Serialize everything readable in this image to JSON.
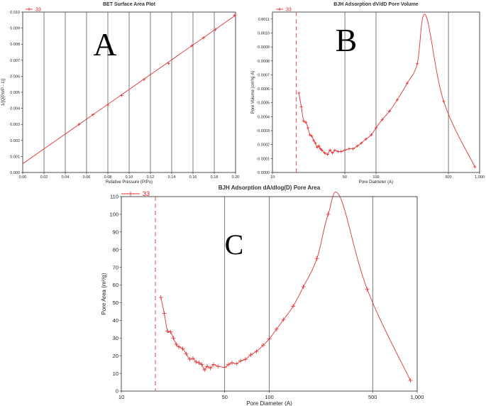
{
  "chart_data": [
    {
      "id": "A",
      "panel_letter": "A",
      "type": "line",
      "title": "BET Surface Area Plot",
      "xlabel": "Relative Pressure (P/Po)",
      "ylabel": "1/[Q(Po/P - 1)]",
      "legend": "33",
      "xscale": "linear",
      "xlim": [
        0,
        0.2
      ],
      "ylim": [
        0,
        0.01
      ],
      "xticks": [
        0,
        0.02,
        0.04,
        0.06,
        0.08,
        0.1,
        0.12,
        0.14,
        0.16,
        0.18,
        0.2
      ],
      "xtick_labels": [
        "0.00",
        "0.02",
        "0.04",
        "0.06",
        "0.08",
        "0.10",
        "0.12",
        "0.14",
        "0.16",
        "0.18",
        "0.20"
      ],
      "yticks": [
        0,
        0.001,
        0.002,
        0.003,
        0.004,
        0.005,
        0.006,
        0.007,
        0.008,
        0.009,
        0.01
      ],
      "ytick_labels": [
        "0.000",
        "0.001",
        "0.002",
        "0.003",
        "0.004",
        "0.005",
        "0.006",
        "0.007",
        "0.008",
        "0.009",
        "0.010"
      ],
      "grid_x": [
        0.02,
        0.04,
        0.06,
        0.08,
        0.1,
        0.12,
        0.14,
        0.16,
        0.18
      ],
      "fit_line": {
        "x": [
          0,
          0.2
        ],
        "y": [
          0.00055,
          0.0098
        ]
      },
      "points": {
        "x": [
          0.053,
          0.066,
          0.08,
          0.093,
          0.114,
          0.137,
          0.159,
          0.17,
          0.181,
          0.199
        ],
        "y": [
          0.003,
          0.0036,
          0.0042,
          0.0048,
          0.0058,
          0.0068,
          0.0079,
          0.0084,
          0.0089,
          0.0098
        ]
      }
    },
    {
      "id": "B",
      "panel_letter": "B",
      "type": "line",
      "title": "BJH Adsorption dV/dD Pore Volume",
      "xlabel": "Pore Diameter (A)",
      "ylabel": "Pore Volume (cm³/g·A)",
      "legend": "33",
      "xscale": "log",
      "xlim": [
        10,
        1000
      ],
      "ylim": [
        0,
        0.00115
      ],
      "xticks": [
        10,
        50,
        100,
        500,
        1000
      ],
      "xtick_labels": [
        "10",
        "50",
        "100",
        "500",
        "1,000"
      ],
      "yticks": [
        0,
        0.0001,
        0.0002,
        0.0003,
        0.0004,
        0.0005,
        0.0006,
        0.0007,
        0.0008,
        0.0009,
        0.001,
        0.0011
      ],
      "ytick_labels": [
        "0.0000",
        "0.0001",
        "0.0002",
        "0.0003",
        "0.0004",
        "0.0005",
        "0.0006",
        "0.0007",
        "0.0008",
        "0.0009",
        "0.0010",
        "0.0011"
      ],
      "grid_x": [
        50,
        100,
        500
      ],
      "dashed_x": 17,
      "x": [
        18,
        19,
        20,
        21,
        22,
        23,
        24,
        25,
        26,
        27,
        28,
        29,
        30,
        32,
        34,
        36,
        38,
        40,
        43,
        46,
        50,
        55,
        60,
        66,
        72,
        80,
        90,
        100,
        115,
        135,
        160,
        200,
        250,
        300,
        450,
        900
      ],
      "y": [
        0.00057,
        0.00047,
        0.00037,
        0.00036,
        0.00032,
        0.00027,
        0.00026,
        0.00023,
        0.00021,
        0.00018,
        0.00019,
        0.00017,
        0.00016,
        0.00014,
        0.00013,
        0.00016,
        0.00014,
        0.00016,
        0.00015,
        0.00015,
        0.00016,
        0.00017,
        0.00017,
        0.00019,
        0.00021,
        0.00024,
        0.00027,
        0.00032,
        0.00038,
        0.00044,
        0.00052,
        0.00064,
        0.00078,
        0.00113,
        0.00051,
        4e-05
      ],
      "markers": [
        18,
        19,
        20,
        21,
        22,
        23,
        24,
        25,
        26,
        27,
        28,
        29,
        30,
        32,
        34,
        36,
        38,
        40,
        43,
        46,
        50,
        55,
        60,
        66,
        72,
        80,
        90,
        100,
        115,
        135,
        160,
        200,
        250,
        450,
        900
      ]
    },
    {
      "id": "C",
      "panel_letter": "C",
      "type": "line",
      "title": "BJH Adsorption dA/dlog(D) Pore Area",
      "xlabel": "Pore Diameter (A)",
      "ylabel": "Pore Area (m²/g)",
      "legend": "33",
      "xscale": "log",
      "xlim": [
        10,
        1000
      ],
      "ylim": [
        0,
        110
      ],
      "xticks": [
        10,
        50,
        100,
        500,
        1000
      ],
      "xtick_labels": [
        "10",
        "50",
        "100",
        "500",
        "1,000"
      ],
      "yticks": [
        0,
        10,
        20,
        30,
        40,
        50,
        60,
        70,
        80,
        90,
        100,
        110
      ],
      "ytick_labels": [
        "0",
        "10",
        "20",
        "30",
        "40",
        "50",
        "60",
        "70",
        "80",
        "90",
        "100",
        "110"
      ],
      "grid_x": [
        50,
        100,
        500
      ],
      "dashed_x": 17,
      "x": [
        18.5,
        19.5,
        20.5,
        21.5,
        22.5,
        23.5,
        24.5,
        26,
        27.5,
        29,
        30.5,
        32,
        33.5,
        35,
        36.5,
        38,
        40,
        42,
        45,
        50,
        53,
        56,
        60,
        64,
        69,
        75,
        82,
        91,
        100,
        112,
        125,
        145,
        170,
        210,
        250,
        300,
        460,
        900
      ],
      "y": [
        53,
        44,
        34,
        33.5,
        30,
        26.5,
        25,
        24,
        21,
        18,
        18.5,
        16.5,
        16,
        15,
        12,
        14,
        13,
        15,
        14,
        13.5,
        15,
        16,
        15.5,
        17,
        18,
        20.5,
        22.5,
        26,
        29.5,
        35,
        40.5,
        48,
        59,
        75,
        100,
        110,
        57.5,
        6
      ],
      "markers": [
        18.5,
        19.5,
        20.5,
        21.5,
        22.5,
        23.5,
        24.5,
        26,
        27.5,
        29,
        30.5,
        32,
        33.5,
        35,
        36.5,
        38,
        40,
        42,
        45,
        50,
        53,
        56,
        60,
        64,
        69,
        75,
        82,
        91,
        100,
        112,
        125,
        145,
        170,
        210,
        250,
        460,
        900
      ]
    }
  ]
}
